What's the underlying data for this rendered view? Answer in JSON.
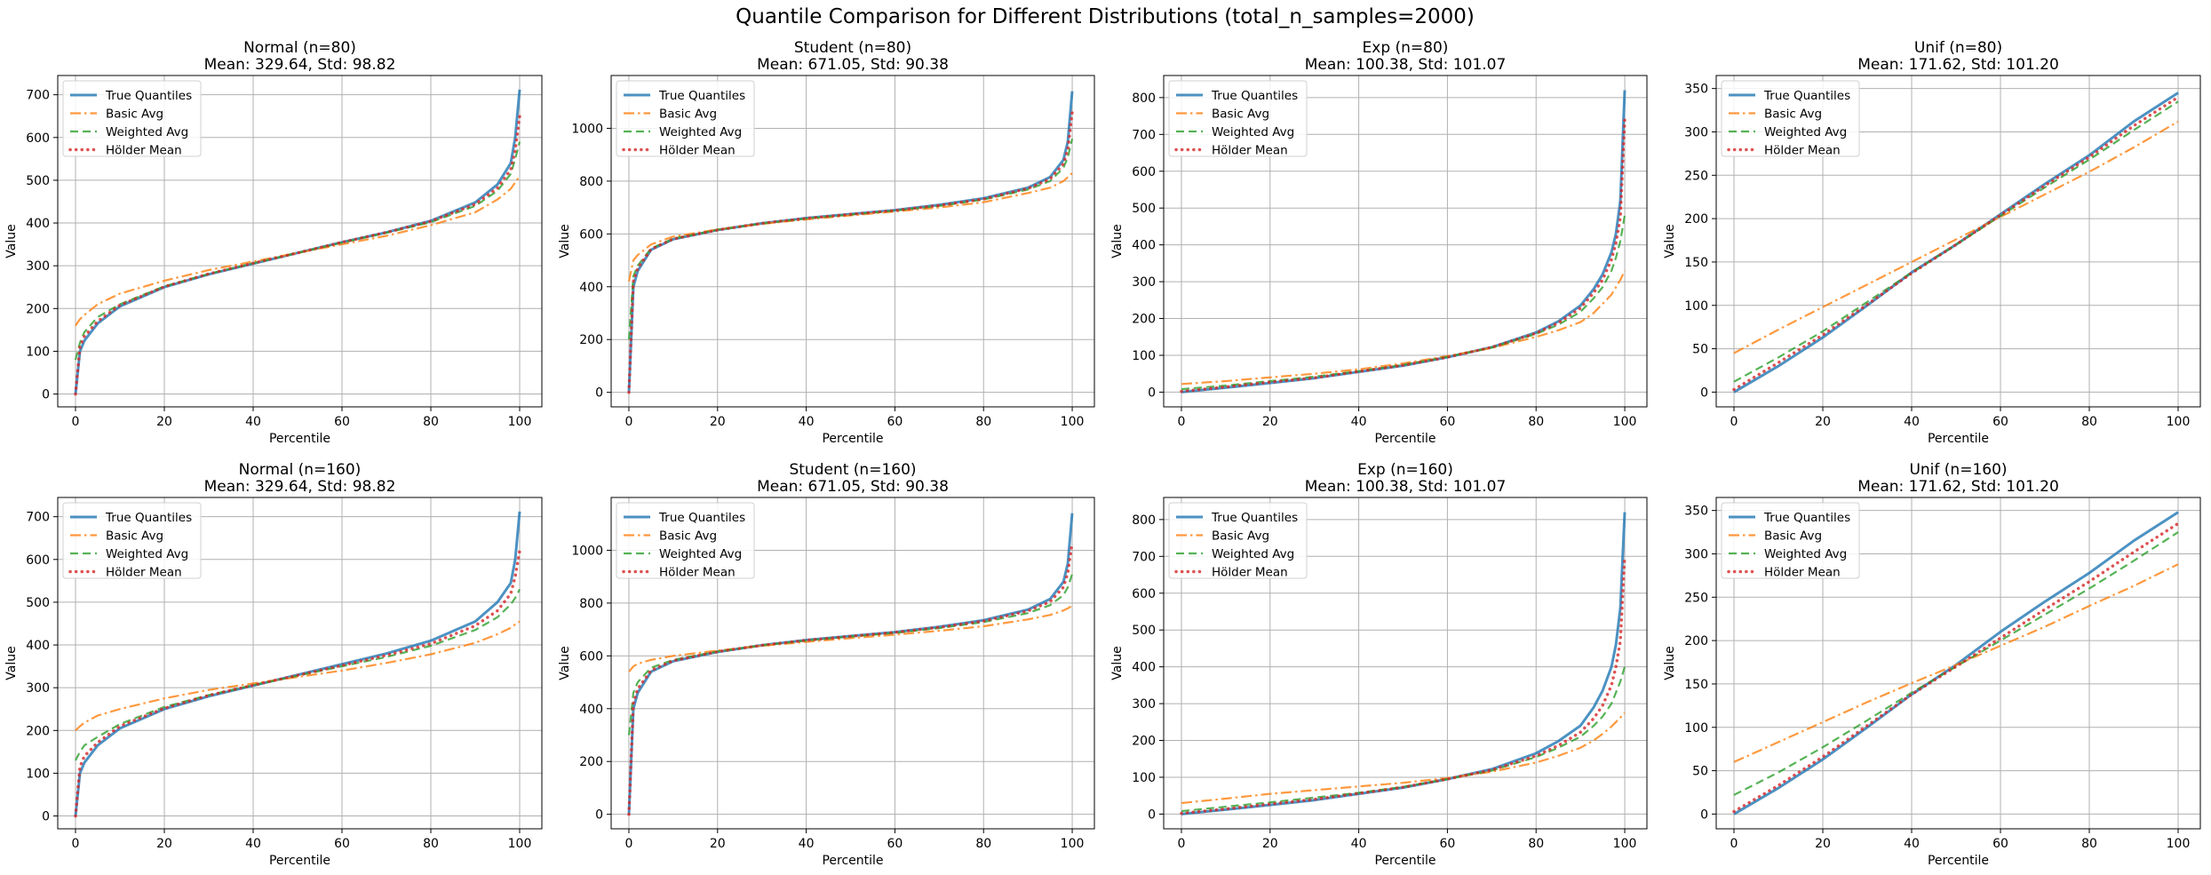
{
  "figure": {
    "suptitle": "Quantile Comparison for Different Distributions (total_n_samples=2000)"
  },
  "legend_labels": [
    "True Quantiles",
    "Basic Avg",
    "Weighted Avg",
    "Hölder Mean"
  ],
  "colors": {
    "true": "#1f77b4",
    "basic": "#ff7f0e",
    "weighted": "#2ca02c",
    "holder": "#d62728",
    "grid": "#b0b0b0"
  },
  "chart_data": [
    {
      "type": "line",
      "title": "Normal (n=80)",
      "subtitle": "Mean: 329.64, Std: 98.82",
      "xlabel": "Percentile",
      "ylabel": "Value",
      "xlim": [
        -4,
        105
      ],
      "ylim": [
        -30,
        745
      ],
      "xticks": [
        0,
        20,
        40,
        60,
        80,
        100
      ],
      "yticks": [
        0,
        100,
        200,
        300,
        400,
        500,
        600,
        700
      ],
      "legend_position": "upper left",
      "grid": true,
      "x": [
        0,
        1,
        2,
        5,
        10,
        20,
        30,
        40,
        50,
        60,
        70,
        80,
        90,
        95,
        98,
        99,
        100
      ],
      "series": [
        {
          "name": "True Quantiles",
          "values": [
            0,
            100,
            125,
            165,
            205,
            250,
            280,
            305,
            330,
            355,
            378,
            405,
            448,
            490,
            540,
            600,
            712
          ]
        },
        {
          "name": "Basic Avg",
          "values": [
            160,
            175,
            185,
            210,
            235,
            265,
            290,
            310,
            330,
            350,
            370,
            395,
            425,
            455,
            480,
            495,
            510
          ]
        },
        {
          "name": "Weighted Avg",
          "values": [
            80,
            120,
            145,
            180,
            210,
            252,
            281,
            306,
            330,
            354,
            377,
            402,
            440,
            475,
            515,
            550,
            590
          ]
        },
        {
          "name": "Hölder Mean",
          "values": [
            0,
            110,
            135,
            170,
            208,
            251,
            281,
            306,
            330,
            355,
            378,
            404,
            444,
            482,
            525,
            570,
            650
          ]
        }
      ]
    },
    {
      "type": "line",
      "title": "Student (n=80)",
      "subtitle": "Mean: 671.05, Std: 90.38",
      "xlabel": "Percentile",
      "ylabel": "Value",
      "xlim": [
        -4,
        105
      ],
      "ylim": [
        -55,
        1200
      ],
      "xticks": [
        0,
        20,
        40,
        60,
        80,
        100
      ],
      "yticks": [
        0,
        200,
        400,
        600,
        800,
        1000
      ],
      "legend_position": "upper left",
      "grid": true,
      "x": [
        0,
        1,
        2,
        5,
        10,
        20,
        30,
        40,
        50,
        60,
        70,
        80,
        90,
        95,
        98,
        99,
        100
      ],
      "series": [
        {
          "name": "True Quantiles",
          "values": [
            0,
            400,
            460,
            540,
            580,
            615,
            640,
            660,
            675,
            690,
            710,
            735,
            775,
            815,
            880,
            950,
            1140
          ]
        },
        {
          "name": "Basic Avg",
          "values": [
            420,
            500,
            520,
            560,
            590,
            617,
            638,
            655,
            670,
            685,
            700,
            720,
            755,
            775,
            800,
            815,
            830
          ]
        },
        {
          "name": "Weighted Avg",
          "values": [
            200,
            440,
            480,
            545,
            582,
            616,
            639,
            658,
            673,
            688,
            706,
            730,
            768,
            800,
            850,
            890,
            960
          ]
        },
        {
          "name": "Hölder Mean",
          "values": [
            0,
            420,
            470,
            542,
            581,
            615,
            640,
            659,
            674,
            689,
            708,
            732,
            772,
            808,
            865,
            920,
            1060
          ]
        }
      ]
    },
    {
      "type": "line",
      "title": "Exp (n=80)",
      "subtitle": "Mean: 100.38, Std: 101.07",
      "xlabel": "Percentile",
      "ylabel": "Value",
      "xlim": [
        -4,
        105
      ],
      "ylim": [
        -40,
        860
      ],
      "xticks": [
        0,
        20,
        40,
        60,
        80,
        100
      ],
      "yticks": [
        0,
        100,
        200,
        300,
        400,
        500,
        600,
        700,
        800
      ],
      "legend_position": "upper left",
      "grid": true,
      "x": [
        0,
        10,
        20,
        30,
        40,
        50,
        60,
        70,
        80,
        85,
        90,
        93,
        95,
        97,
        98,
        99,
        100
      ],
      "series": [
        {
          "name": "True Quantiles",
          "values": [
            0,
            12,
            25,
            38,
            55,
            72,
            95,
            122,
            162,
            192,
            235,
            280,
            320,
            380,
            430,
            520,
            820
          ]
        },
        {
          "name": "Basic Avg",
          "values": [
            22,
            30,
            40,
            50,
            62,
            78,
            98,
            120,
            150,
            168,
            190,
            215,
            240,
            265,
            285,
            305,
            330
          ]
        },
        {
          "name": "Weighted Avg",
          "values": [
            8,
            18,
            30,
            42,
            57,
            74,
            96,
            121,
            158,
            183,
            218,
            255,
            285,
            330,
            365,
            410,
            480
          ]
        },
        {
          "name": "Hölder Mean",
          "values": [
            2,
            14,
            27,
            39,
            56,
            73,
            95,
            122,
            160,
            188,
            228,
            270,
            305,
            360,
            405,
            475,
            740
          ]
        }
      ]
    },
    {
      "type": "line",
      "title": "Unif (n=80)",
      "subtitle": "Mean: 171.62, Std: 101.20",
      "xlabel": "Percentile",
      "ylabel": "Value",
      "xlim": [
        -4,
        105
      ],
      "ylim": [
        -17,
        365
      ],
      "xticks": [
        0,
        20,
        40,
        60,
        80,
        100
      ],
      "yticks": [
        0,
        50,
        100,
        150,
        200,
        250,
        300,
        350
      ],
      "legend_position": "upper left",
      "grid": true,
      "x": [
        0,
        10,
        20,
        30,
        40,
        50,
        60,
        70,
        80,
        90,
        100
      ],
      "series": [
        {
          "name": "True Quantiles",
          "values": [
            0,
            30,
            63,
            100,
            138,
            170,
            205,
            240,
            273,
            312,
            345
          ]
        },
        {
          "name": "Basic Avg",
          "values": [
            45,
            72,
            98,
            124,
            150,
            176,
            202,
            228,
            254,
            282,
            312
          ]
        },
        {
          "name": "Weighted Avg",
          "values": [
            12,
            40,
            70,
            104,
            138,
            170,
            203,
            236,
            268,
            302,
            335
          ]
        },
        {
          "name": "Hölder Mean",
          "values": [
            3,
            34,
            66,
            101,
            137,
            170,
            204,
            238,
            271,
            307,
            340
          ]
        }
      ]
    },
    {
      "type": "line",
      "title": "Normal (n=160)",
      "subtitle": "Mean: 329.64, Std: 98.82",
      "xlabel": "Percentile",
      "ylabel": "Value",
      "xlim": [
        -4,
        105
      ],
      "ylim": [
        -30,
        745
      ],
      "xticks": [
        0,
        20,
        40,
        60,
        80,
        100
      ],
      "yticks": [
        0,
        100,
        200,
        300,
        400,
        500,
        600,
        700
      ],
      "legend_position": "upper left",
      "grid": true,
      "x": [
        0,
        1,
        2,
        5,
        10,
        20,
        30,
        40,
        50,
        60,
        70,
        80,
        90,
        95,
        98,
        99,
        100
      ],
      "series": [
        {
          "name": "True Quantiles",
          "values": [
            0,
            100,
            125,
            165,
            205,
            250,
            280,
            305,
            330,
            355,
            380,
            410,
            455,
            500,
            545,
            600,
            712
          ]
        },
        {
          "name": "Basic Avg",
          "values": [
            200,
            210,
            218,
            235,
            250,
            275,
            295,
            310,
            325,
            340,
            358,
            378,
            405,
            425,
            440,
            448,
            455
          ]
        },
        {
          "name": "Weighted Avg",
          "values": [
            130,
            150,
            165,
            185,
            215,
            255,
            283,
            306,
            328,
            350,
            372,
            398,
            435,
            465,
            495,
            510,
            530
          ]
        },
        {
          "name": "Hölder Mean",
          "values": [
            0,
            115,
            140,
            172,
            210,
            252,
            282,
            306,
            329,
            352,
            376,
            403,
            445,
            480,
            520,
            560,
            620
          ]
        }
      ]
    },
    {
      "type": "line",
      "title": "Student (n=160)",
      "subtitle": "Mean: 671.05, Std: 90.38",
      "xlabel": "Percentile",
      "ylabel": "Value",
      "xlim": [
        -4,
        105
      ],
      "ylim": [
        -55,
        1200
      ],
      "xticks": [
        0,
        20,
        40,
        60,
        80,
        100
      ],
      "yticks": [
        0,
        200,
        400,
        600,
        800,
        1000
      ],
      "legend_position": "upper left",
      "grid": true,
      "x": [
        0,
        1,
        2,
        5,
        10,
        20,
        30,
        40,
        50,
        60,
        70,
        80,
        90,
        95,
        98,
        99,
        100
      ],
      "series": [
        {
          "name": "True Quantiles",
          "values": [
            0,
            400,
            460,
            540,
            580,
            615,
            640,
            660,
            675,
            690,
            710,
            735,
            775,
            815,
            880,
            950,
            1140
          ]
        },
        {
          "name": "Basic Avg",
          "values": [
            540,
            560,
            570,
            585,
            600,
            620,
            638,
            653,
            667,
            680,
            695,
            712,
            738,
            755,
            772,
            780,
            790
          ]
        },
        {
          "name": "Weighted Avg",
          "values": [
            300,
            460,
            500,
            555,
            585,
            617,
            640,
            658,
            673,
            687,
            705,
            728,
            762,
            792,
            830,
            860,
            910
          ]
        },
        {
          "name": "Hölder Mean",
          "values": [
            0,
            420,
            475,
            545,
            582,
            616,
            640,
            659,
            674,
            689,
            708,
            732,
            770,
            805,
            860,
            915,
            1030
          ]
        }
      ]
    },
    {
      "type": "line",
      "title": "Exp (n=160)",
      "subtitle": "Mean: 100.38, Std: 101.07",
      "xlabel": "Percentile",
      "ylabel": "Value",
      "xlim": [
        -4,
        105
      ],
      "ylim": [
        -40,
        860
      ],
      "xticks": [
        0,
        20,
        40,
        60,
        80,
        100
      ],
      "yticks": [
        0,
        100,
        200,
        300,
        400,
        500,
        600,
        700,
        800
      ],
      "legend_position": "upper left",
      "grid": true,
      "x": [
        0,
        10,
        20,
        30,
        40,
        50,
        60,
        70,
        80,
        85,
        90,
        93,
        95,
        97,
        98,
        99,
        100
      ],
      "series": [
        {
          "name": "True Quantiles",
          "values": [
            0,
            12,
            25,
            38,
            55,
            72,
            95,
            122,
            165,
            198,
            240,
            290,
            335,
            400,
            460,
            560,
            820
          ]
        },
        {
          "name": "Basic Avg",
          "values": [
            30,
            42,
            55,
            65,
            75,
            85,
            98,
            115,
            140,
            158,
            180,
            200,
            218,
            238,
            250,
            262,
            275
          ]
        },
        {
          "name": "Weighted Avg",
          "values": [
            8,
            20,
            32,
            45,
            58,
            74,
            95,
            118,
            155,
            180,
            210,
            240,
            265,
            300,
            330,
            360,
            400
          ]
        },
        {
          "name": "Hölder Mean",
          "values": [
            2,
            14,
            27,
            40,
            56,
            73,
            95,
            120,
            158,
            186,
            222,
            260,
            295,
            350,
            400,
            470,
            700
          ]
        }
      ]
    },
    {
      "type": "line",
      "title": "Unif (n=160)",
      "subtitle": "Mean: 171.62, Std: 101.20",
      "xlabel": "Percentile",
      "ylabel": "Value",
      "xlim": [
        -4,
        105
      ],
      "ylim": [
        -17,
        365
      ],
      "xticks": [
        0,
        20,
        40,
        60,
        80,
        100
      ],
      "yticks": [
        0,
        50,
        100,
        150,
        200,
        250,
        300,
        350
      ],
      "legend_position": "upper left",
      "grid": true,
      "x": [
        0,
        10,
        20,
        30,
        40,
        50,
        60,
        70,
        80,
        90,
        100
      ],
      "series": [
        {
          "name": "True Quantiles",
          "values": [
            0,
            30,
            63,
            100,
            138,
            172,
            210,
            245,
            278,
            315,
            348
          ]
        },
        {
          "name": "Basic Avg",
          "values": [
            60,
            83,
            106,
            129,
            151,
            172,
            194,
            216,
            240,
            263,
            288
          ]
        },
        {
          "name": "Weighted Avg",
          "values": [
            22,
            48,
            77,
            108,
            140,
            170,
            200,
            230,
            260,
            292,
            325
          ]
        },
        {
          "name": "Hölder Mean",
          "values": [
            3,
            33,
            66,
            102,
            138,
            170,
            203,
            236,
            268,
            302,
            335
          ]
        }
      ]
    }
  ]
}
